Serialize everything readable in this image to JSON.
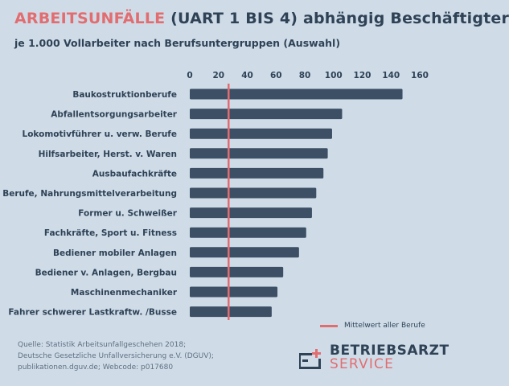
{
  "title": {
    "highlight": "ARBEITSUNFÄLLE",
    "rest": "(UART 1 BIS 4) abhängig Beschäftigter"
  },
  "subtitle": "je 1.000 Vollarbeiter nach Berufsuntergruppen (Auswahl)",
  "legend": {
    "mean_label": "Mittelwert aller Berufe"
  },
  "source": [
    "Quelle: Statistik Arbeitsunfallgeschehen 2018;",
    "Deutsche Gesetzliche Unfallversicherung e.V. (DGUV);",
    "publikationen.dguv.de; Webcode: p017680"
  ],
  "brand": {
    "line1": "BETRIEBSARZT",
    "line2": "SERVICE"
  },
  "colors": {
    "bar": "#3d4f64",
    "mean_line": "#e26d70",
    "background": "#cfdce8",
    "accent": "#e26d70"
  },
  "chart_data": {
    "type": "bar",
    "orientation": "horizontal",
    "categories": [
      "Baukostruktionberufe",
      "Abfallentsorgungsarbeiter",
      "Lokomotivführer u. verw. Berufe",
      "Hilfsarbeiter, Herst. v. Waren",
      "Ausbaufachkräfte",
      "Berufe, Nahrungsmittelverarbeitung",
      "Former u. Schweißer",
      "Fachkräfte, Sport u. Fitness",
      "Bediener mobiler Anlagen",
      "Bediener v. Anlagen, Bergbau",
      "Maschinenmechaniker",
      "Fahrer schwerer Lastkraftw. /Busse"
    ],
    "values": [
      148,
      106,
      99,
      96,
      93,
      88,
      85,
      81,
      76,
      65,
      61,
      57
    ],
    "mean_value": 27,
    "xlim": [
      0,
      160
    ],
    "ticks": [
      0,
      20,
      40,
      60,
      80,
      100,
      120,
      140,
      160
    ],
    "tick_position": "top",
    "grid": false,
    "legend_position": "bottom-right"
  }
}
